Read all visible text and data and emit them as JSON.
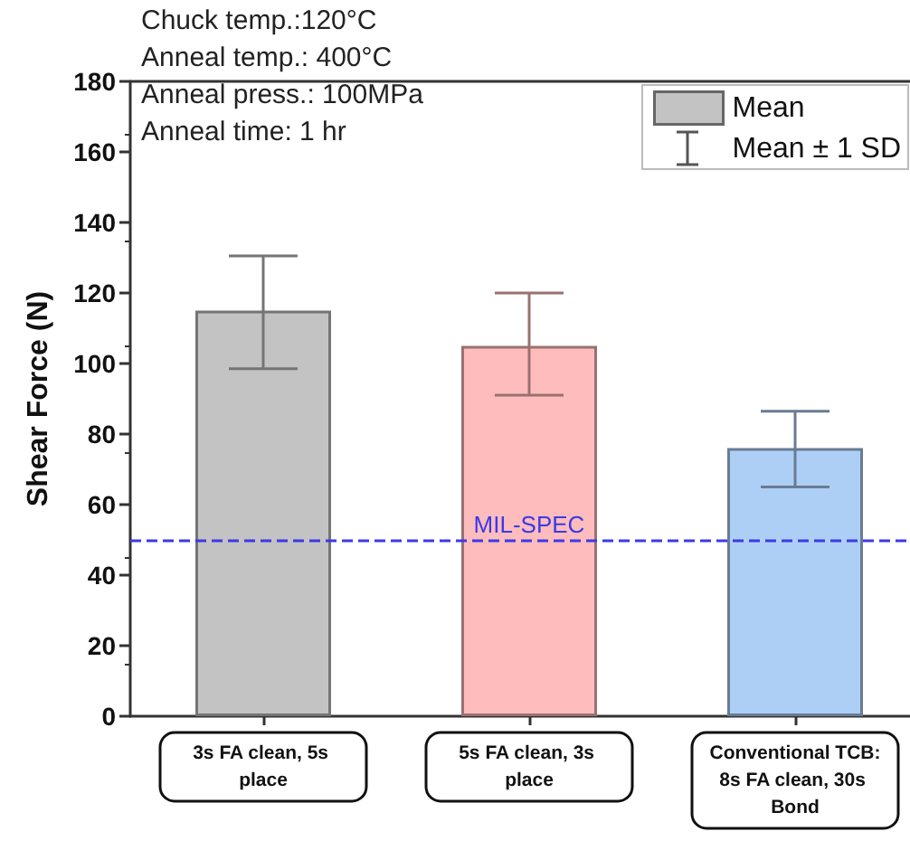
{
  "chart_data": {
    "type": "bar",
    "ylabel": "Shear Force (N)",
    "categories": [
      "3s FA clean, 5s place",
      "5s FA clean, 3s place",
      "Conventional TCB:\n8s FA clean, 30s Bond"
    ],
    "series": [
      {
        "name": "Mean",
        "colors": [
          "#c3c3c3",
          "#ffbcbc",
          "#aecff5"
        ],
        "values": [
          115,
          105,
          76
        ],
        "errors": [
          [
            98.5,
            130.5
          ],
          [
            91,
            120
          ],
          [
            65,
            86.5
          ]
        ]
      }
    ],
    "ylim": [
      0,
      180
    ],
    "yticks": [
      0,
      20,
      40,
      60,
      80,
      100,
      120,
      140,
      160,
      180
    ],
    "ref_lines": [
      {
        "axis": "y",
        "value": 50,
        "label": "MIL-SPEC",
        "color": "#3a3ae8",
        "line_style": "dashed"
      }
    ],
    "annotations": [
      "Chuck temp.:120°C",
      "Anneal temp.: 400°C",
      "Anneal press.: 100MPa",
      "Anneal time: 1 hr",
      "Mean ± 1 SD"
    ],
    "legend": "top right",
    "grid": false
  }
}
